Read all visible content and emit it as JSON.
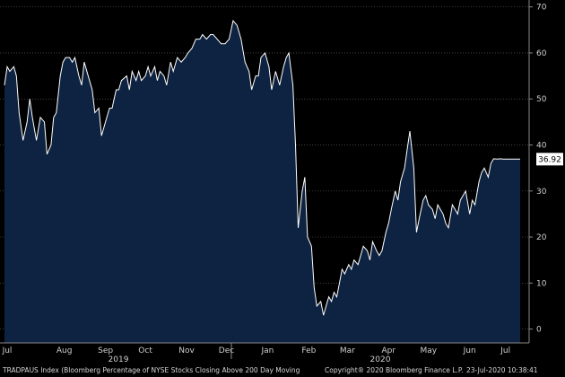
{
  "chart_data": {
    "type": "area",
    "ylim": [
      -3,
      71.5
    ],
    "yticks": [
      0,
      10,
      20,
      30,
      40,
      50,
      60,
      70
    ],
    "grid": true,
    "x_months": [
      "Jul",
      "Aug",
      "Sep",
      "Oct",
      "Nov",
      "Dec",
      "Jan",
      "Feb",
      "Mar",
      "Apr",
      "May",
      "Jun",
      "Jul"
    ],
    "year_labels": [
      "2019",
      "2020"
    ],
    "colors": {
      "fill": "#0e2341",
      "line": "#ffffff",
      "grid": "#5a5a5a",
      "background": "#000000"
    },
    "last_value": "36.92",
    "series": [
      {
        "x": [
          "2019-07-01",
          "2019-07-03",
          "2019-07-05",
          "2019-07-08",
          "2019-07-10",
          "2019-07-12",
          "2019-07-15",
          "2019-07-18",
          "2019-07-20",
          "2019-07-22",
          "2019-07-25",
          "2019-07-28",
          "2019-07-31",
          "2019-08-02",
          "2019-08-05",
          "2019-08-07",
          "2019-08-09",
          "2019-08-12",
          "2019-08-14",
          "2019-08-16",
          "2019-08-19",
          "2019-08-21",
          "2019-08-23",
          "2019-08-26",
          "2019-08-28",
          "2019-08-30",
          "2019-09-03",
          "2019-09-05",
          "2019-09-07",
          "2019-09-10",
          "2019-09-12",
          "2019-09-15",
          "2019-09-18",
          "2019-09-20",
          "2019-09-23",
          "2019-09-25",
          "2019-09-27",
          "2019-10-01",
          "2019-10-03",
          "2019-10-05",
          "2019-10-08",
          "2019-10-10",
          "2019-10-12",
          "2019-10-15",
          "2019-10-17",
          "2019-10-19",
          "2019-10-22",
          "2019-10-24",
          "2019-10-26",
          "2019-10-29",
          "2019-10-31",
          "2019-11-03",
          "2019-11-05",
          "2019-11-08",
          "2019-11-11",
          "2019-11-14",
          "2019-11-16",
          "2019-11-19",
          "2019-11-22",
          "2019-11-25",
          "2019-11-27",
          "2019-11-30",
          "2019-12-03",
          "2019-12-05",
          "2019-12-08",
          "2019-12-11",
          "2019-12-14",
          "2019-12-17",
          "2019-12-20",
          "2019-12-23",
          "2019-12-26",
          "2019-12-29",
          "2020-01-01",
          "2020-01-03",
          "2020-01-06",
          "2020-01-08",
          "2020-01-10",
          "2020-01-13",
          "2020-01-16",
          "2020-01-18",
          "2020-01-21",
          "2020-01-24",
          "2020-01-27",
          "2020-01-29",
          "2020-01-31",
          "2020-02-03",
          "2020-02-05",
          "2020-02-07",
          "2020-02-10",
          "2020-02-12",
          "2020-02-14",
          "2020-02-17",
          "2020-02-19",
          "2020-02-21",
          "2020-02-24",
          "2020-02-26",
          "2020-02-28",
          "2020-03-01",
          "2020-03-03",
          "2020-03-05",
          "2020-03-07",
          "2020-03-09",
          "2020-03-11",
          "2020-03-13",
          "2020-03-16",
          "2020-03-18",
          "2020-03-20",
          "2020-03-23",
          "2020-03-25",
          "2020-03-27",
          "2020-03-30",
          "2020-04-01",
          "2020-04-03",
          "2020-04-06",
          "2020-04-08",
          "2020-04-10",
          "2020-04-13",
          "2020-04-15",
          "2020-04-17",
          "2020-04-20",
          "2020-04-22",
          "2020-04-24",
          "2020-04-27",
          "2020-04-29",
          "2020-05-01",
          "2020-05-04",
          "2020-05-06",
          "2020-05-08",
          "2020-05-11",
          "2020-05-13",
          "2020-05-15",
          "2020-05-18",
          "2020-05-20",
          "2020-05-22",
          "2020-05-26",
          "2020-05-28",
          "2020-05-30",
          "2020-06-02",
          "2020-06-04",
          "2020-06-06",
          "2020-06-08",
          "2020-06-10",
          "2020-06-12",
          "2020-06-15",
          "2020-06-17",
          "2020-06-19",
          "2020-06-22",
          "2020-06-24",
          "2020-06-26",
          "2020-06-29",
          "2020-07-01",
          "2020-07-03",
          "2020-07-06",
          "2020-07-08",
          "2020-07-10",
          "2020-07-13",
          "2020-07-15",
          "2020-07-17",
          "2020-07-20",
          "2020-07-22",
          "2020-07-23"
        ],
        "y": [
          53,
          57,
          56,
          57,
          55,
          47,
          41,
          45,
          50,
          46,
          41,
          46,
          45,
          38,
          40,
          46,
          47,
          55,
          58,
          59,
          59,
          58,
          59,
          55,
          53,
          58,
          54,
          52,
          47,
          48,
          42,
          45,
          48,
          48,
          52,
          52,
          54,
          55,
          52,
          56,
          54,
          56,
          54,
          55,
          57,
          55,
          57,
          54,
          56,
          55,
          53,
          58,
          56,
          59,
          58,
          59,
          60,
          61,
          63,
          63,
          64,
          63,
          64,
          64,
          63,
          62,
          62,
          63,
          67,
          66,
          63,
          58,
          56,
          52,
          55,
          55,
          59,
          60,
          57,
          52,
          56,
          53,
          57,
          59,
          60,
          53,
          40,
          22,
          30,
          33,
          20,
          18,
          9,
          5,
          6,
          3,
          5,
          7,
          6,
          8,
          7,
          10,
          13,
          12,
          14,
          13,
          15,
          14,
          16,
          18,
          17,
          15,
          19,
          17,
          16,
          17,
          21,
          23,
          26,
          30,
          28,
          32,
          35,
          39,
          43,
          35,
          21,
          24,
          28,
          29,
          27,
          26,
          24,
          27,
          25,
          23,
          22,
          27,
          26,
          25,
          28,
          29,
          30,
          25,
          28,
          27,
          32,
          34,
          35,
          33,
          36,
          37,
          36.92,
          37,
          36.92,
          36.92,
          36.92,
          36.92,
          36.92,
          36.92,
          36.92
        ]
      }
    ]
  },
  "footer": {
    "left": "TRADPAUS Index (Bloomberg Percentage of NYSE Stocks Closing Above 200 Day Moving",
    "mid": "Copyright® 2020 Bloomberg Finance L.P.",
    "right": "23-Jul-2020 10:38:41"
  }
}
